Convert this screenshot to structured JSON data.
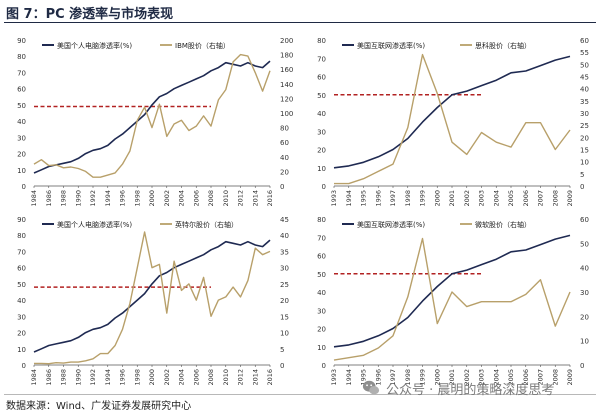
{
  "figure": {
    "title": "图 7：PC 渗透率与市场表现",
    "source": "数据来源：Wind、广发证券发展研究中心",
    "watermark_text": "公众号 · 晨明的策略深度思考",
    "watermark_icon": "wechat-icon"
  },
  "colors": {
    "primary_line": "#1f2a52",
    "secondary_line": "#b8a06a",
    "ref_line": "#b22222",
    "axis": "#555555"
  },
  "chart_data": [
    {
      "type": "line",
      "x_labels": [
        "1984",
        "1986",
        "1988",
        "1990",
        "1992",
        "1994",
        "1996",
        "1998",
        "2000",
        "2002",
        "2004",
        "2006",
        "2008",
        "2010",
        "2012",
        "2014",
        "2016"
      ],
      "xlim": [
        1984,
        2016
      ],
      "ylim_left": [
        0,
        90
      ],
      "yticks_left": [
        0,
        10,
        20,
        30,
        40,
        50,
        60,
        70,
        80,
        90
      ],
      "ylim_right": [
        0,
        200
      ],
      "yticks_right": [
        0,
        20,
        40,
        60,
        80,
        100,
        120,
        140,
        160,
        180,
        200
      ],
      "reference_line": {
        "y": 49,
        "x_start": 1984,
        "x_end": 2008
      },
      "series": [
        {
          "name": "美国个人电脑渗透率(%)",
          "axis": "left",
          "x": [
            1984,
            1985,
            1986,
            1987,
            1988,
            1989,
            1990,
            1991,
            1992,
            1993,
            1994,
            1995,
            1996,
            1997,
            1998,
            1999,
            2000,
            2001,
            2002,
            2003,
            2004,
            2005,
            2006,
            2007,
            2008,
            2009,
            2010,
            2011,
            2012,
            2013,
            2014,
            2015,
            2016
          ],
          "y": [
            8,
            10,
            12,
            13,
            14,
            15,
            17,
            20,
            22,
            23,
            25,
            29,
            32,
            36,
            40,
            44,
            50,
            55,
            57,
            60,
            62,
            64,
            66,
            68,
            71,
            73,
            76,
            75,
            74,
            76,
            74,
            73,
            77
          ]
        },
        {
          "name": "IBM股价（右轴）",
          "axis": "right",
          "x": [
            1984,
            1985,
            1986,
            1987,
            1988,
            1989,
            1990,
            1991,
            1992,
            1993,
            1994,
            1995,
            1996,
            1997,
            1998,
            1999,
            2000,
            2001,
            2002,
            2003,
            2004,
            2005,
            2006,
            2007,
            2008,
            2009,
            2010,
            2011,
            2012,
            2013,
            2014,
            2015,
            2016
          ],
          "y": [
            30,
            36,
            28,
            29,
            25,
            26,
            24,
            20,
            12,
            12,
            15,
            18,
            30,
            48,
            90,
            108,
            80,
            112,
            68,
            85,
            90,
            76,
            82,
            96,
            82,
            118,
            132,
            170,
            180,
            178,
            155,
            130,
            158
          ]
        }
      ]
    },
    {
      "type": "line",
      "x_labels": [
        "1993",
        "1994",
        "1995",
        "1996",
        "1997",
        "1998",
        "1999",
        "2000",
        "2001",
        "2002",
        "2003",
        "2004",
        "2005",
        "2006",
        "2007",
        "2008",
        "2009"
      ],
      "xlim": [
        1993,
        2009
      ],
      "ylim_left": [
        0,
        80
      ],
      "yticks_left": [
        0,
        10,
        20,
        30,
        40,
        50,
        60,
        70,
        80
      ],
      "ylim_right": [
        0,
        60
      ],
      "yticks_right": [
        0,
        5,
        10,
        15,
        20,
        25,
        30,
        35,
        40,
        45,
        50,
        55,
        60
      ],
      "reference_line": {
        "y": 50,
        "x_start": 1993,
        "x_end": 2003
      },
      "series": [
        {
          "name": "美国互联网渗透率(%)",
          "axis": "left",
          "x": [
            1993,
            1994,
            1995,
            1996,
            1997,
            1998,
            1999,
            2000,
            2001,
            2002,
            2003,
            2004,
            2005,
            2006,
            2007,
            2008,
            2009
          ],
          "y": [
            10,
            11,
            13,
            16,
            20,
            26,
            35,
            43,
            50,
            52,
            55,
            58,
            62,
            63,
            66,
            69,
            71
          ]
        },
        {
          "name": "思科股价（右轴）",
          "axis": "right",
          "x": [
            1993,
            1994,
            1995,
            1996,
            1997,
            1998,
            1999,
            2000,
            2001,
            2002,
            2003,
            2004,
            2005,
            2006,
            2007,
            2008,
            2009
          ],
          "y": [
            1,
            1,
            3,
            6,
            9,
            24,
            54,
            38,
            18,
            13,
            22,
            18,
            16,
            26,
            26,
            15,
            23
          ]
        }
      ]
    },
    {
      "type": "line",
      "x_labels": [
        "1984",
        "1986",
        "1988",
        "1990",
        "1992",
        "1994",
        "1996",
        "1998",
        "2000",
        "2002",
        "2004",
        "2006",
        "2008",
        "2010",
        "2012",
        "2014",
        "2016"
      ],
      "xlim": [
        1984,
        2016
      ],
      "ylim_left": [
        0,
        90
      ],
      "yticks_left": [
        0,
        10,
        20,
        30,
        40,
        50,
        60,
        70,
        80,
        90
      ],
      "ylim_right": [
        0,
        45
      ],
      "yticks_right": [
        0,
        5,
        10,
        15,
        20,
        25,
        30,
        35,
        40,
        45
      ],
      "reference_line": {
        "y": 48,
        "x_start": 1984,
        "x_end": 2008
      },
      "series": [
        {
          "name": "美国个人电脑渗透率(%)",
          "axis": "left",
          "x": [
            1984,
            1985,
            1986,
            1987,
            1988,
            1989,
            1990,
            1991,
            1992,
            1993,
            1994,
            1995,
            1996,
            1997,
            1998,
            1999,
            2000,
            2001,
            2002,
            2003,
            2004,
            2005,
            2006,
            2007,
            2008,
            2009,
            2010,
            2011,
            2012,
            2013,
            2014,
            2015,
            2016
          ],
          "y": [
            8,
            10,
            12,
            13,
            14,
            15,
            17,
            20,
            22,
            23,
            25,
            29,
            32,
            36,
            40,
            44,
            50,
            55,
            57,
            60,
            62,
            64,
            66,
            68,
            71,
            73,
            76,
            75,
            74,
            76,
            74,
            73,
            77
          ]
        },
        {
          "name": "英特尔股价（右轴）",
          "axis": "right",
          "x": [
            1984,
            1985,
            1986,
            1987,
            1988,
            1989,
            1990,
            1991,
            1992,
            1993,
            1994,
            1995,
            1996,
            1997,
            1998,
            1999,
            2000,
            2001,
            2002,
            2003,
            2004,
            2005,
            2006,
            2007,
            2008,
            2009,
            2010,
            2011,
            2012,
            2013,
            2014,
            2015,
            2016
          ],
          "y": [
            0.5,
            0.5,
            0.4,
            0.7,
            0.6,
            0.9,
            0.9,
            1.3,
            1.9,
            3.5,
            3.5,
            6,
            11,
            19,
            30,
            41,
            30,
            31,
            16,
            32,
            23,
            25,
            20,
            27,
            15,
            20,
            21,
            24,
            21,
            26,
            36,
            34,
            35
          ]
        }
      ]
    },
    {
      "type": "line",
      "x_labels": [
        "1993",
        "1994",
        "1995",
        "1996",
        "1997",
        "1998",
        "1999",
        "2000",
        "2001",
        "2002",
        "2003",
        "2004",
        "2005",
        "2006",
        "2007",
        "2008",
        "2009"
      ],
      "xlim": [
        1993,
        2009
      ],
      "ylim_left": [
        0,
        80
      ],
      "yticks_left": [
        0,
        10,
        20,
        30,
        40,
        50,
        60,
        70,
        80
      ],
      "ylim_right": [
        0,
        60
      ],
      "yticks_right": [
        0,
        10,
        20,
        30,
        40,
        50,
        60
      ],
      "reference_line": {
        "y": 50,
        "x_start": 1993,
        "x_end": 2003
      },
      "series": [
        {
          "name": "美国互联网渗透率(%)",
          "axis": "left",
          "x": [
            1993,
            1994,
            1995,
            1996,
            1997,
            1998,
            1999,
            2000,
            2001,
            2002,
            2003,
            2004,
            2005,
            2006,
            2007,
            2008,
            2009
          ],
          "y": [
            10,
            11,
            13,
            16,
            20,
            26,
            35,
            43,
            50,
            52,
            55,
            58,
            62,
            63,
            66,
            69,
            71
          ]
        },
        {
          "name": "微软股价（右轴）",
          "axis": "right",
          "x": [
            1993,
            1994,
            1995,
            1996,
            1997,
            1998,
            1999,
            2000,
            2001,
            2002,
            2003,
            2004,
            2005,
            2006,
            2007,
            2008,
            2009
          ],
          "y": [
            2,
            3,
            4,
            7,
            12,
            28,
            52,
            17,
            30,
            24,
            26,
            26,
            26,
            29,
            35,
            16,
            30
          ]
        }
      ]
    }
  ]
}
